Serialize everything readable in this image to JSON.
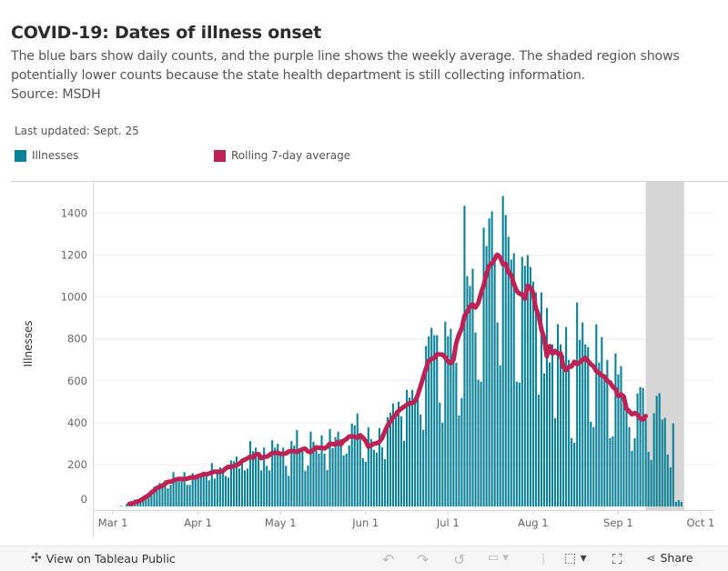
{
  "header": {
    "title": "COVID-19: Dates of illness onset",
    "subtitle": "The blue bars show daily counts, and the purple line shows the weekly average. The shaded region shows potentially lower counts because the state health department is still collecting information.",
    "source": "Source: MSDH",
    "last_updated": "Last updated: Sept. 25"
  },
  "legend": [
    {
      "label": "Illnesses",
      "color": "#0b8298"
    },
    {
      "label": "Rolling 7-day average",
      "color": "#bc2253"
    }
  ],
  "toolbar": {
    "view_on_tableau": "View on Tableau Public",
    "share": "Share",
    "icons": [
      "tableau-logo-icon",
      "undo-icon",
      "redo-icon",
      "revert-icon",
      "pause-icon",
      "download-icon",
      "fullscreen-icon",
      "share-icon"
    ]
  },
  "chart_data": {
    "type": "bar",
    "ylabel": "Illnesses",
    "xlabel": "",
    "ylim": [
      0,
      1550
    ],
    "xlim": [
      "Feb 23",
      "Oct 6"
    ],
    "y_ticks": [
      0,
      200,
      400,
      600,
      800,
      1000,
      1200,
      1400
    ],
    "x_ticks": [
      {
        "date": "Mar 1",
        "label": "Mar 1"
      },
      {
        "date": "Apr 1",
        "label": "Apr 1"
      },
      {
        "date": "May 1",
        "label": "May 1"
      },
      {
        "date": "Jun 1",
        "label": "Jun 1"
      },
      {
        "date": "Jul 1",
        "label": "Jul 1"
      },
      {
        "date": "Aug 1",
        "label": "Aug 1"
      },
      {
        "date": "Sep 1",
        "label": "Sep 1"
      },
      {
        "date": "Oct 1",
        "label": "Oct 1"
      }
    ],
    "grid": "horizontal",
    "shaded_range": [
      "Sep 11",
      "Sep 25"
    ],
    "shaded_color": "#d6d6d6",
    "series": [
      {
        "name": "Illnesses",
        "type": "bar",
        "color": "#0b8298",
        "start_date": "Mar 4",
        "values": [
          3,
          0,
          12,
          7,
          12,
          33,
          20,
          20,
          33,
          38,
          46,
          68,
          94,
          77,
          112,
          94,
          125,
          86,
          103,
          164,
          138,
          120,
          129,
          164,
          103,
          103,
          159,
          150,
          150,
          146,
          155,
          155,
          125,
          207,
          133,
          177,
          186,
          181,
          146,
          138,
          220,
          216,
          238,
          181,
          216,
          172,
          181,
          312,
          264,
          281,
          246,
          172,
          281,
          194,
          172,
          316,
          281,
          299,
          246,
          281,
          194,
          146,
          312,
          291,
          365,
          270,
          265,
          170,
          196,
          357,
          309,
          270,
          252,
          339,
          252,
          174,
          370,
          278,
          331,
          357,
          322,
          244,
          252,
          291,
          396,
          387,
          444,
          330,
          231,
          213,
          378,
          322,
          270,
          257,
          374,
          283,
          226,
          426,
          448,
          492,
          457,
          500,
          431,
          313,
          557,
          520,
          557,
          518,
          557,
          439,
          365,
          766,
          813,
          853,
          818,
          818,
          496,
          400,
          883,
          813,
          848,
          722,
          687,
          435,
          518,
          1436,
          1100,
          1053,
          1135,
          831,
          605,
          596,
          1331,
          1244,
          1375,
          1409,
          1205,
          879,
          674,
          1483,
          1392,
          1288,
          1179,
          1209,
          596,
          592,
          1192,
          1149,
          1200,
          1144,
          1074,
          1022,
          535,
          1022,
          635,
          948,
          687,
          774,
          422,
          870,
          774,
          722,
          857,
          700,
          326,
          304,
          974,
          796,
          879,
          774,
          761,
          405,
          379,
          870,
          687,
          809,
          613,
          700,
          326,
          335,
          731,
          631,
          670,
          522,
          478,
          379,
          266,
          326,
          539,
          570,
          566,
          418,
          261,
          222,
          445,
          528,
          541,
          415,
          423,
          248,
          187,
          397,
          22,
          30,
          22
        ]
      },
      {
        "name": "Rolling 7-day average",
        "type": "line",
        "color": "#bc2253",
        "window": 7,
        "end_date": "Sep 11"
      }
    ]
  }
}
